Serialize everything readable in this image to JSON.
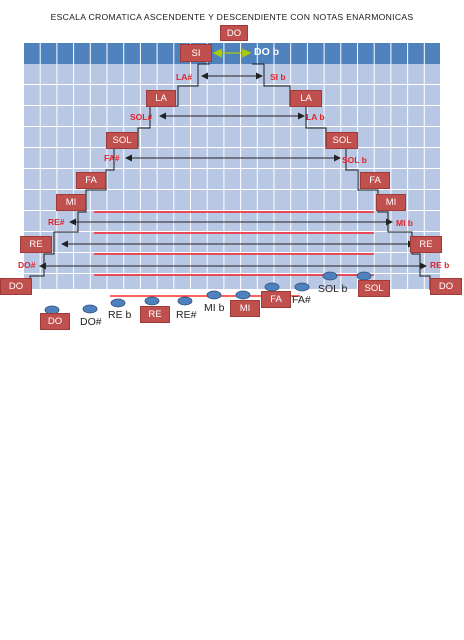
{
  "title": "ESCALA CROMATICA  ASCENDENTE  Y  DESCENDIENTE CON NOTAS  ENARMONICAS",
  "stair": {
    "top_box": "DO",
    "top_left_box": "SI",
    "top_right_label": "DO b",
    "boxes_left": [
      "LA",
      "SOL",
      "FA",
      "MI",
      "RE",
      "DO"
    ],
    "boxes_right": [
      "LA",
      "SOL",
      "FA",
      "MI",
      "RE",
      "DO"
    ],
    "sharps_left": [
      "LA#",
      "SOL#",
      "FA#",
      "RE#",
      "DO#"
    ],
    "flats_right": [
      "SI b",
      "LA b",
      "SOL b",
      "MI b",
      "RE b"
    ]
  },
  "staff": {
    "notes_boxed": [
      "DO",
      "RE",
      "MI",
      "FA",
      "SOL"
    ],
    "notes_plain": [
      "DO#",
      "RE b",
      "RE#",
      "MI b",
      "FA#",
      "SOL b"
    ]
  },
  "colors": {
    "grid_top": "#4f81bd",
    "grid_body": "#b8c8e4",
    "box": "#c0504d",
    "accidental_text": "#e0232b",
    "staff_line": "#ff0000",
    "arrow_green": "#aacc00",
    "note_head": "#4f81bd"
  }
}
